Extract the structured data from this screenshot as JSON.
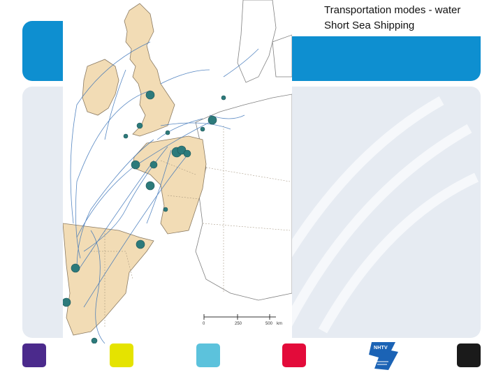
{
  "slide": {
    "title_line_1": "Transportation modes - water",
    "title_line_2": "Short Sea Shipping"
  },
  "map": {
    "scale_labels": [
      "0",
      "250",
      "500",
      "km"
    ],
    "land_color": "#f2dcb5",
    "route_color": "#3a73b8",
    "port_color": "#2c7a7b"
  },
  "footer": {
    "logo_text": "NHTV",
    "colors": {
      "purple": "#4b2a8c",
      "yellow": "#e5e300",
      "cyan": "#5cc2dc",
      "red": "#e30b3a",
      "black": "#1a1a1a"
    }
  },
  "theme": {
    "band_color": "#0e8fd0",
    "panel_color": "#e6ebf2"
  }
}
